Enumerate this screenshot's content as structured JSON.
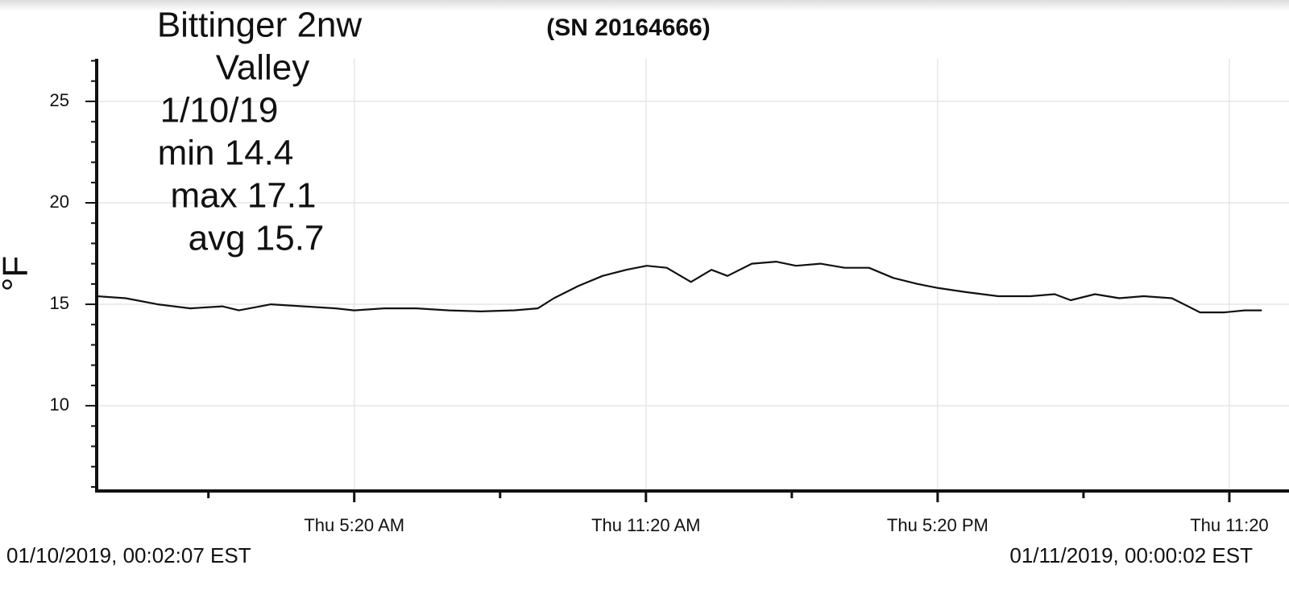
{
  "chart_data": {
    "type": "line",
    "title_lines": [
      "Bittinger 2nw",
      "Valley",
      "1/10/19",
      "min 14.4",
      "max 17.1",
      "avg 15.7"
    ],
    "subtitle": "(SN 20164666)",
    "y_label": "°F",
    "start_label": "01/10/2019, 00:02:07 EST",
    "end_label": "01/11/2019, 00:00:02 EST",
    "x": [
      0.04,
      0.63,
      1.29,
      1.96,
      2.62,
      2.96,
      3.62,
      4.29,
      4.95,
      5.33,
      5.95,
      6.61,
      7.28,
      7.94,
      8.61,
      9.11,
      9.44,
      9.94,
      10.44,
      10.93,
      11.35,
      11.76,
      12.26,
      12.68,
      13.01,
      13.51,
      14.01,
      14.42,
      14.92,
      15.42,
      15.92,
      16.42,
      16.92,
      17.35,
      17.91,
      18.58,
      19.24,
      19.74,
      20.07,
      20.57,
      21.07,
      21.57,
      22.15,
      22.73,
      23.23,
      23.65,
      24.0
    ],
    "series": [
      {
        "color": "#111111",
        "values": [
          15.4,
          15.3,
          15.0,
          14.8,
          14.9,
          14.7,
          15.0,
          14.9,
          14.8,
          14.7,
          14.8,
          14.8,
          14.7,
          14.65,
          14.7,
          14.8,
          15.3,
          15.9,
          16.4,
          16.7,
          16.9,
          16.8,
          16.1,
          16.7,
          16.4,
          17.0,
          17.1,
          16.9,
          17.0,
          16.8,
          16.8,
          16.3,
          16.0,
          15.8,
          15.6,
          15.4,
          15.4,
          15.5,
          15.2,
          15.5,
          15.3,
          15.4,
          15.3,
          14.6,
          14.6,
          14.7,
          14.7
        ]
      }
    ],
    "xlim": [
      0.035,
      24.56
    ],
    "xticks": [
      {
        "value": 5.333,
        "label": "Thu 5:20 AM"
      },
      {
        "value": 11.333,
        "label": "Thu 11:20 AM"
      },
      {
        "value": 17.333,
        "label": "Thu 5:20 PM"
      },
      {
        "value": 23.333,
        "label": "Thu 11:20"
      }
    ],
    "xminorticks": [
      2.333,
      8.333,
      14.333,
      20.333
    ],
    "ylim": [
      5.8,
      27.1
    ],
    "yticks": [
      10,
      15,
      20,
      25
    ],
    "yminorticks": [
      6,
      7,
      8,
      9,
      11,
      12,
      13,
      14,
      16,
      17,
      18,
      19,
      21,
      22,
      23,
      24,
      26,
      27
    ],
    "grid": true
  }
}
